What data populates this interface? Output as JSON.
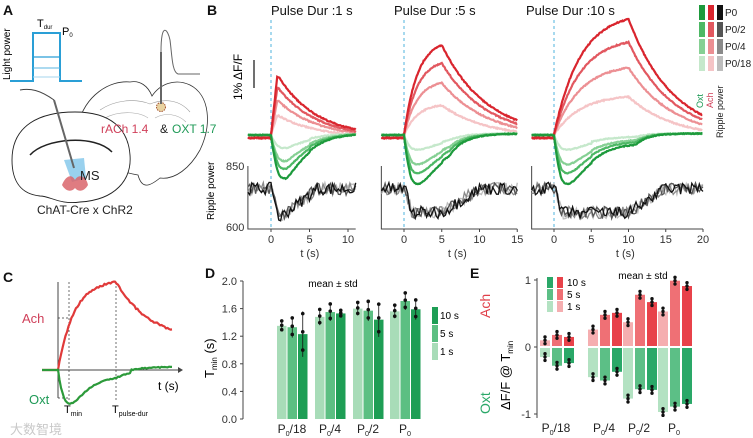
{
  "panels": {
    "a": "A",
    "b": "B",
    "c": "C",
    "d": "D",
    "e": "E"
  },
  "panel_a": {
    "light_power_label": "Light power",
    "t_dur": "T",
    "t_dur_sub": "dur",
    "p0": "P",
    "p0_sub": "0",
    "sensor_ach": "rACh 1.4",
    "amp": "&",
    "sensor_oxt": "OXT 1.7",
    "region": "MS",
    "mouse_line": "ChAT-Cre x ChR2"
  },
  "panel_b": {
    "scale_bar_label": "1%  ΔF/F",
    "ripple_ylabel": "Ripple power",
    "ripple_ticks": [
      "850",
      "600"
    ],
    "xlabel": "t (s)",
    "legend": {
      "levels": [
        "P0",
        "P0/2",
        "P0/4",
        "P0/18"
      ],
      "col_oxt": "Oxt",
      "col_ach": "Ach",
      "col_ripple": "Ripple power"
    },
    "subpanels": [
      {
        "title": "Pulse Dur :1 s",
        "pulse": 1,
        "xlim": [
          -3,
          11
        ],
        "xticks": [
          "0",
          "5",
          "10"
        ]
      },
      {
        "title": "Pulse Dur :5 s",
        "pulse": 5,
        "xlim": [
          -3,
          15
        ],
        "xticks": [
          "0",
          "5",
          "10",
          "15"
        ]
      },
      {
        "title": "Pulse Dur :10 s",
        "pulse": 10,
        "xlim": [
          -3,
          20
        ],
        "xticks": [
          "0",
          "5",
          "10",
          "15",
          "20"
        ]
      }
    ]
  },
  "panel_c": {
    "ach": "Ach",
    "oxt": "Oxt",
    "xlabel": "t (s)",
    "t_min": "T",
    "t_min_sub": "min",
    "t_pulse": "T",
    "t_pulse_sub": "pulse-dur"
  },
  "colors": {
    "ach": [
      "#d9252e",
      "#e25860",
      "#ec8f93",
      "#f5c4c6"
    ],
    "oxt": [
      "#1d9a3c",
      "#4db865",
      "#86d094",
      "#c5e8cb"
    ],
    "ripple": [
      "#111111",
      "#555555",
      "#8a8a8a",
      "#bdbdbd"
    ],
    "d_bars": {
      "10 s": "#1e9e55",
      "5 s": "#5cbf82",
      "1 s": "#a8dcb8"
    },
    "e_ach": {
      "10 s": "#e8424a",
      "5 s": "#ef7075",
      "1 s": "#f5aeb0"
    },
    "e_oxt": {
      "10 s": "#2aa868",
      "5 s": "#5cbf86",
      "1 s": "#b3e2c2"
    }
  },
  "chart_data": [
    {
      "id": "D",
      "type": "bar",
      "title": "mean ± std",
      "ylabel": "T",
      "ylabel_sub": "min",
      "ylabel_unit": " (s)",
      "ylim": [
        0,
        2.0
      ],
      "yticks": [
        "0.0",
        "0.4",
        "0.8",
        "1.2",
        "1.6",
        "2.0"
      ],
      "categories": [
        "P0/18",
        "P0/4",
        "P0/2",
        "P0"
      ],
      "legend": [
        "10 s",
        "5 s",
        "1 s"
      ],
      "series": [
        {
          "name": "1 s",
          "values": [
            1.35,
            1.48,
            1.6,
            1.56
          ],
          "std": [
            0.08,
            0.12,
            0.1,
            0.1
          ]
        },
        {
          "name": "5 s",
          "values": [
            1.33,
            1.55,
            1.57,
            1.71
          ],
          "std": [
            0.15,
            0.13,
            0.15,
            0.13
          ]
        },
        {
          "name": "10 s",
          "values": [
            1.23,
            1.53,
            1.44,
            1.59
          ],
          "std": [
            0.33,
            0.05,
            0.25,
            0.15
          ]
        }
      ]
    },
    {
      "id": "E",
      "type": "bar",
      "title": "mean ± std",
      "ylabel": "ΔF/F @ T",
      "ylabel_sub": "min",
      "label_ach": "Ach",
      "label_oxt": "Oxt",
      "ylim": [
        -1,
        1
      ],
      "yticks": [
        "1",
        "0",
        "-1"
      ],
      "categories": [
        "P0/18",
        "P0/4",
        "P0/2",
        "P0"
      ],
      "legend": [
        "10 s",
        "5 s",
        "1 s"
      ],
      "series": [
        {
          "name": "Ach 1 s",
          "values": [
            0.1,
            0.26,
            0.37,
            0.53
          ]
        },
        {
          "name": "Ach 5 s",
          "values": [
            0.18,
            0.48,
            0.78,
            0.99
          ]
        },
        {
          "name": "Ach 10 s",
          "values": [
            0.15,
            0.51,
            0.67,
            0.91
          ]
        },
        {
          "name": "Oxt 1 s",
          "values": [
            -0.15,
            -0.45,
            -0.77,
            -0.97
          ]
        },
        {
          "name": "Oxt 5 s",
          "values": [
            -0.28,
            -0.5,
            -0.63,
            -0.89
          ]
        },
        {
          "name": "Oxt 10 s",
          "values": [
            -0.24,
            -0.37,
            -0.64,
            -0.85
          ]
        }
      ]
    }
  ],
  "watermark": "大数智境"
}
